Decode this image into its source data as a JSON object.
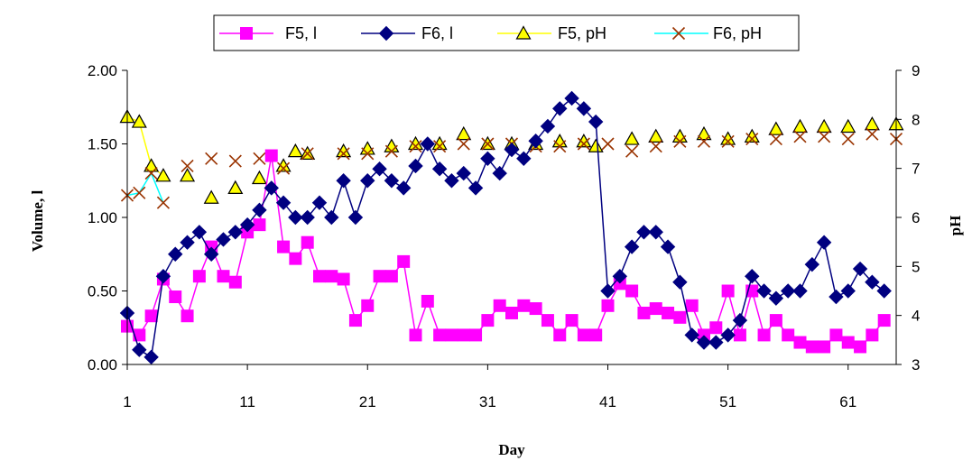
{
  "chart_data": {
    "type": "line",
    "xlabel": "Day",
    "ylabel_left": "Volume, l",
    "ylabel_right": "pH",
    "xlim": [
      1,
      65
    ],
    "ylim_left": [
      0,
      2
    ],
    "ylim_right": [
      3,
      9
    ],
    "x_ticks": [
      1,
      11,
      21,
      31,
      41,
      51,
      61
    ],
    "y_ticks_left": [
      "0.00",
      "0.50",
      "1.00",
      "1.50",
      "2.00"
    ],
    "y_ticks_right": [
      "3",
      "4",
      "5",
      "6",
      "7",
      "8",
      "9"
    ],
    "legend_position": "top",
    "series": [
      {
        "name": "F5, l",
        "axis": "left",
        "color": "#ff00ff",
        "marker": "square",
        "points": [
          [
            1,
            0.26
          ],
          [
            2,
            0.2
          ],
          [
            3,
            0.33
          ],
          [
            4,
            0.58
          ],
          [
            5,
            0.46
          ],
          [
            6,
            0.33
          ],
          [
            7,
            0.6
          ],
          [
            8,
            0.8
          ],
          [
            9,
            0.6
          ],
          [
            10,
            0.56
          ],
          [
            11,
            0.9
          ],
          [
            12,
            0.95
          ],
          [
            13,
            1.42
          ],
          [
            14,
            0.8
          ],
          [
            15,
            0.72
          ],
          [
            16,
            0.83
          ],
          [
            17,
            0.6
          ],
          [
            18,
            0.6
          ],
          [
            19,
            0.58
          ],
          [
            20,
            0.3
          ],
          [
            21,
            0.4
          ],
          [
            22,
            0.6
          ],
          [
            23,
            0.6
          ],
          [
            24,
            0.7
          ],
          [
            25,
            0.2
          ],
          [
            26,
            0.43
          ],
          [
            27,
            0.2
          ],
          [
            28,
            0.2
          ],
          [
            29,
            0.2
          ],
          [
            30,
            0.2
          ],
          [
            31,
            0.3
          ],
          [
            32,
            0.4
          ],
          [
            33,
            0.35
          ],
          [
            34,
            0.4
          ],
          [
            35,
            0.38
          ],
          [
            36,
            0.3
          ],
          [
            37,
            0.2
          ],
          [
            38,
            0.3
          ],
          [
            39,
            0.2
          ],
          [
            40,
            0.2
          ],
          [
            41,
            0.4
          ],
          [
            42,
            0.55
          ],
          [
            43,
            0.5
          ],
          [
            44,
            0.35
          ],
          [
            45,
            0.38
          ],
          [
            46,
            0.35
          ],
          [
            47,
            0.32
          ],
          [
            48,
            0.4
          ],
          [
            49,
            0.2
          ],
          [
            50,
            0.25
          ],
          [
            51,
            0.5
          ],
          [
            52,
            0.2
          ],
          [
            53,
            0.5
          ],
          [
            54,
            0.2
          ],
          [
            55,
            0.3
          ],
          [
            56,
            0.2
          ],
          [
            57,
            0.15
          ],
          [
            58,
            0.12
          ],
          [
            59,
            0.12
          ],
          [
            60,
            0.2
          ],
          [
            61,
            0.15
          ],
          [
            62,
            0.12
          ],
          [
            63,
            0.2
          ],
          [
            64,
            0.3
          ]
        ]
      },
      {
        "name": "F6, l",
        "axis": "left",
        "color": "#000080",
        "marker": "diamond",
        "points": [
          [
            1,
            0.35
          ],
          [
            2,
            0.1
          ],
          [
            3,
            0.05
          ],
          [
            4,
            0.6
          ],
          [
            5,
            0.75
          ],
          [
            6,
            0.83
          ],
          [
            7,
            0.9
          ],
          [
            8,
            0.75
          ],
          [
            9,
            0.85
          ],
          [
            10,
            0.9
          ],
          [
            11,
            0.95
          ],
          [
            12,
            1.05
          ],
          [
            13,
            1.2
          ],
          [
            14,
            1.1
          ],
          [
            15,
            1.0
          ],
          [
            16,
            1.0
          ],
          [
            17,
            1.1
          ],
          [
            18,
            1.0
          ],
          [
            19,
            1.25
          ],
          [
            20,
            1.0
          ],
          [
            21,
            1.25
          ],
          [
            22,
            1.33
          ],
          [
            23,
            1.25
          ],
          [
            24,
            1.2
          ],
          [
            25,
            1.35
          ],
          [
            26,
            1.5
          ],
          [
            27,
            1.33
          ],
          [
            28,
            1.25
          ],
          [
            29,
            1.3
          ],
          [
            30,
            1.2
          ],
          [
            31,
            1.4
          ],
          [
            32,
            1.3
          ],
          [
            33,
            1.46
          ],
          [
            34,
            1.4
          ],
          [
            35,
            1.52
          ],
          [
            36,
            1.62
          ],
          [
            37,
            1.74
          ],
          [
            38,
            1.81
          ],
          [
            39,
            1.74
          ],
          [
            40,
            1.65
          ],
          [
            41,
            0.5
          ],
          [
            42,
            0.6
          ],
          [
            43,
            0.8
          ],
          [
            44,
            0.9
          ],
          [
            45,
            0.9
          ],
          [
            46,
            0.8
          ],
          [
            47,
            0.56
          ],
          [
            48,
            0.2
          ],
          [
            49,
            0.15
          ],
          [
            50,
            0.15
          ],
          [
            51,
            0.2
          ],
          [
            52,
            0.3
          ],
          [
            53,
            0.6
          ],
          [
            54,
            0.5
          ],
          [
            55,
            0.45
          ],
          [
            56,
            0.5
          ],
          [
            57,
            0.5
          ],
          [
            58,
            0.68
          ],
          [
            59,
            0.83
          ],
          [
            60,
            0.46
          ],
          [
            61,
            0.5
          ],
          [
            62,
            0.65
          ],
          [
            63,
            0.56
          ],
          [
            64,
            0.5
          ]
        ]
      },
      {
        "name": "F5, pH",
        "axis": "right",
        "color": "#ffff00",
        "marker": "triangle",
        "points": [
          [
            1,
            8.05
          ],
          [
            2,
            7.95
          ],
          [
            3,
            7.05
          ],
          [
            4,
            6.85
          ],
          [
            6,
            6.85
          ],
          [
            8,
            6.4
          ],
          [
            10,
            6.6
          ],
          [
            12,
            6.8
          ],
          [
            14,
            7.05
          ],
          [
            15,
            7.35
          ],
          [
            16,
            7.3
          ],
          [
            19,
            7.35
          ],
          [
            21,
            7.4
          ],
          [
            23,
            7.45
          ],
          [
            25,
            7.5
          ],
          [
            27,
            7.5
          ],
          [
            29,
            7.7
          ],
          [
            31,
            7.5
          ],
          [
            33,
            7.5
          ],
          [
            35,
            7.5
          ],
          [
            37,
            7.55
          ],
          [
            39,
            7.55
          ],
          [
            40,
            7.45
          ],
          [
            43,
            7.6
          ],
          [
            45,
            7.65
          ],
          [
            47,
            7.65
          ],
          [
            49,
            7.7
          ],
          [
            51,
            7.6
          ],
          [
            53,
            7.65
          ],
          [
            55,
            7.8
          ],
          [
            57,
            7.85
          ],
          [
            59,
            7.85
          ],
          [
            61,
            7.85
          ],
          [
            63,
            7.9
          ],
          [
            65,
            7.9
          ]
        ]
      },
      {
        "name": "F6, pH",
        "axis": "right",
        "color": "#00ffff",
        "marker": "x",
        "points": [
          [
            1,
            6.45
          ],
          [
            2,
            6.5
          ],
          [
            3,
            6.9
          ],
          [
            4,
            6.3
          ],
          [
            6,
            7.05
          ],
          [
            8,
            7.2
          ],
          [
            10,
            7.15
          ],
          [
            12,
            7.2
          ],
          [
            14,
            7.0
          ],
          [
            16,
            7.3
          ],
          [
            19,
            7.3
          ],
          [
            21,
            7.3
          ],
          [
            23,
            7.35
          ],
          [
            25,
            7.45
          ],
          [
            27,
            7.45
          ],
          [
            29,
            7.5
          ],
          [
            31,
            7.5
          ],
          [
            33,
            7.5
          ],
          [
            35,
            7.45
          ],
          [
            37,
            7.45
          ],
          [
            39,
            7.5
          ],
          [
            41,
            7.5
          ],
          [
            43,
            7.35
          ],
          [
            45,
            7.45
          ],
          [
            47,
            7.55
          ],
          [
            49,
            7.55
          ],
          [
            51,
            7.55
          ],
          [
            53,
            7.6
          ],
          [
            55,
            7.6
          ],
          [
            57,
            7.65
          ],
          [
            59,
            7.65
          ],
          [
            61,
            7.6
          ],
          [
            63,
            7.7
          ],
          [
            65,
            7.6
          ]
        ]
      }
    ]
  }
}
